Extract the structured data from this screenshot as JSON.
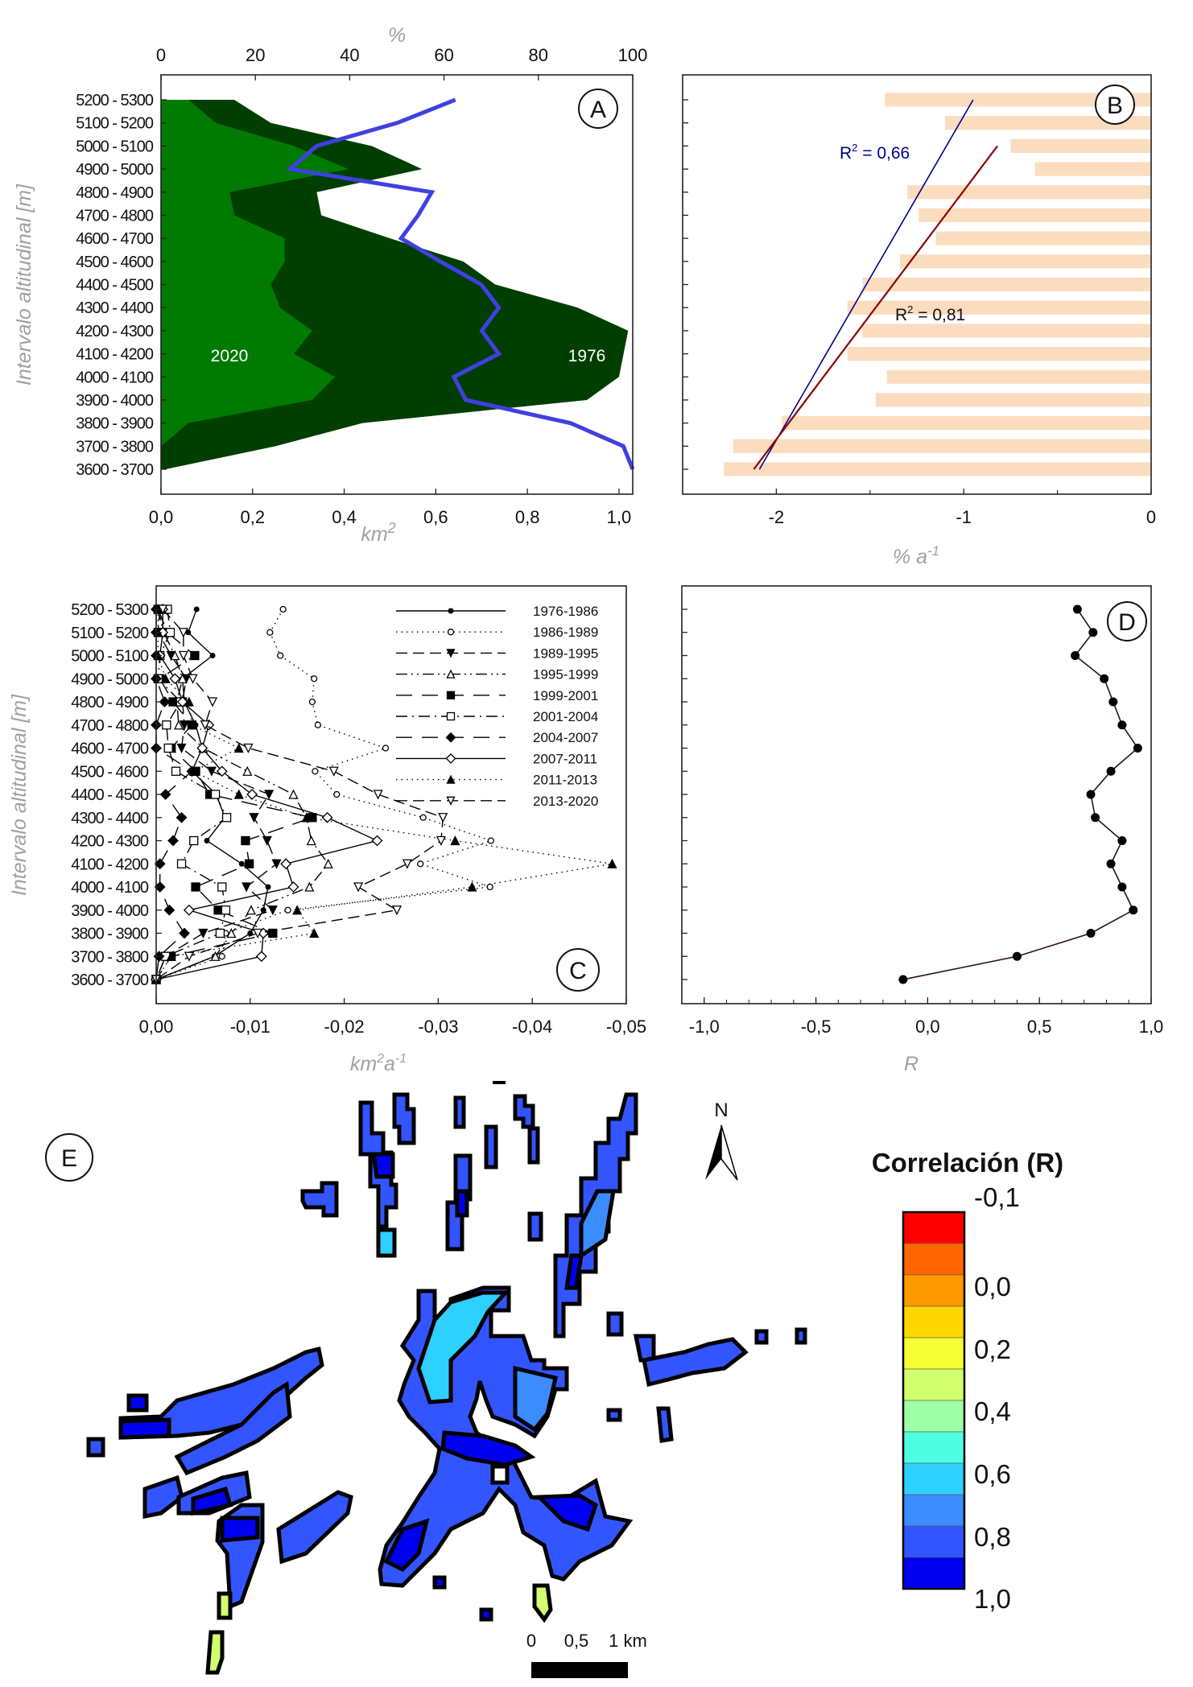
{
  "figure": {
    "row_labels": [
      "5200 - 5300",
      "5100 - 5200",
      "5000 - 5100",
      "4900 - 5000",
      "4800 - 4900",
      "4700 - 4800",
      "4600 - 4700",
      "4500 - 4600",
      "4400 - 4500",
      "4300 - 4400",
      "4200 - 4300",
      "4100 - 4200",
      "4000 - 4100",
      "3900 - 4000",
      "3800 - 3900",
      "3700 - 3800",
      "3600 - 3700"
    ]
  },
  "chart_data": [
    {
      "id": "A",
      "type": "area",
      "panel_label": "A",
      "ylabel": "Intervalo altitudinal [m]",
      "xlabel": "km²",
      "xlabel_base": "km",
      "xlabel_sup": "2",
      "x2label": "%",
      "xlim": [
        0,
        1.03
      ],
      "x2lim": [
        0,
        100
      ],
      "xticks": [
        "0,0",
        "0,2",
        "0,4",
        "0,6",
        "0,8",
        "1,0"
      ],
      "xtick_values": [
        0,
        0.2,
        0.4,
        0.6,
        0.8,
        1.0
      ],
      "x2ticks": [
        "0",
        "20",
        "40",
        "60",
        "80",
        "100"
      ],
      "x2tick_values": [
        0,
        20,
        40,
        60,
        80,
        100
      ],
      "categories": [
        "5200-5300",
        "5100-5200",
        "5000-5100",
        "4900-5000",
        "4800-4900",
        "4700-4800",
        "4600-4700",
        "4500-4600",
        "4400-4500",
        "4300-4400",
        "4200-4300",
        "4100-4200",
        "4000-4100",
        "3900-4000",
        "3800-3900",
        "3700-3800",
        "3600-3700"
      ],
      "series": [
        {
          "name": "1976",
          "axis": "km2",
          "color": "#003f00",
          "values": [
            0.16,
            0.24,
            0.46,
            0.57,
            0.34,
            0.35,
            0.5,
            0.66,
            0.73,
            0.91,
            1.02,
            1.01,
            1.0,
            0.93,
            0.44,
            0.25,
            0.01
          ]
        },
        {
          "name": "2020",
          "axis": "km2",
          "color": "#007a00",
          "values": [
            0.06,
            0.12,
            0.29,
            0.41,
            0.15,
            0.16,
            0.27,
            0.27,
            0.24,
            0.26,
            0.33,
            0.29,
            0.38,
            0.33,
            0.06,
            0.0,
            0.0
          ]
        },
        {
          "name": "% loss",
          "axis": "percent",
          "color": "#4040e0",
          "values": [
            62.4,
            50.1,
            33.0,
            27.4,
            57.4,
            54.5,
            50.9,
            59.2,
            67.9,
            71.6,
            68.0,
            71.6,
            62.1,
            64.6,
            86.8,
            98.0,
            100.0
          ]
        }
      ],
      "annotations": [
        "2020",
        "1976"
      ]
    },
    {
      "id": "B",
      "type": "bar",
      "panel_label": "B",
      "xlabel": "% a⁻¹",
      "xlabel_base": "% a",
      "xlabel_sup": "-1",
      "xlim": [
        -2.5,
        0
      ],
      "xticks": [
        "-2",
        "-1",
        "0"
      ],
      "xtick_values": [
        -2,
        -1,
        0
      ],
      "categories": [
        "5200-5300",
        "5100-5200",
        "5000-5100",
        "4900-5000",
        "4800-4900",
        "4700-4800",
        "4600-4700",
        "4500-4600",
        "4400-4500",
        "4300-4400",
        "4200-4300",
        "4100-4200",
        "4000-4100",
        "3900-4000",
        "3800-3900",
        "3700-3800",
        "3600-3700"
      ],
      "values": [
        -1.42,
        -1.1,
        -0.75,
        -0.62,
        -1.3,
        -1.24,
        -1.15,
        -1.34,
        -1.54,
        -1.62,
        -1.54,
        -1.62,
        -1.41,
        -1.47,
        -1.97,
        -2.23,
        -2.28
      ],
      "bar_color": "#fcdcbf",
      "trendlines": [
        {
          "label_base": "R",
          "label_sup": "2",
          "label_value": " = 0,66",
          "r2": 0.66,
          "color": "#00008b",
          "from": {
            "x": -2.09,
            "category": "3600-3700"
          },
          "to": {
            "x": -0.95,
            "category": "5200-5300"
          }
        },
        {
          "label_base": "R",
          "label_sup": "2",
          "label_value": " = 0,81",
          "r2": 0.81,
          "color": "#8b0000",
          "from": {
            "x": -2.12,
            "category": "3600-3700"
          },
          "to": {
            "x": -0.82,
            "category": "5000-5100"
          }
        }
      ]
    },
    {
      "id": "C",
      "type": "line",
      "panel_label": "C",
      "ylabel": "Intervalo altitudinal [m]",
      "xlabel": "km²a⁻¹",
      "xlabel_parts": [
        "km",
        "2",
        "a",
        "-1"
      ],
      "xlim": [
        0,
        -0.05
      ],
      "xticks": [
        "0,00",
        "-0,01",
        "-0,02",
        "-0,03",
        "-0,04",
        "-0,05"
      ],
      "xtick_values": [
        0,
        -0.01,
        -0.02,
        -0.03,
        -0.04,
        -0.05
      ],
      "categories": [
        "5200-5300",
        "5100-5200",
        "5000-5100",
        "4900-5000",
        "4800-4900",
        "4700-4800",
        "4600-4700",
        "4500-4600",
        "4400-4500",
        "4300-4400",
        "4200-4300",
        "4100-4200",
        "4000-4100",
        "3900-4000",
        "3800-3900",
        "3700-3800",
        "3600-3700"
      ],
      "legend_position": "top-right",
      "series": [
        {
          "name": "1976-1986",
          "marker": "dot",
          "dash": "solid",
          "values": [
            -0.0043,
            -0.0034,
            -0.006,
            -0.0028,
            -0.003,
            -0.0042,
            -0.0049,
            -0.0038,
            -0.0064,
            -0.0073,
            -0.0054,
            -0.0091,
            -0.0119,
            -0.0114,
            -0.01,
            -0.0062,
            0
          ]
        },
        {
          "name": "1986-1989",
          "marker": "open-circle",
          "dash": "dotted",
          "values": [
            -0.0135,
            -0.0121,
            -0.0132,
            -0.0168,
            -0.0166,
            -0.0172,
            -0.0244,
            -0.0169,
            -0.0192,
            -0.0284,
            -0.0356,
            -0.0281,
            -0.0355,
            -0.014,
            -0.0074,
            -0.007,
            0
          ]
        },
        {
          "name": "1989-1995",
          "marker": "filled-down-triangle",
          "dash": "dashed",
          "values": [
            -0.0004,
            -0.0002,
            -0.0016,
            -0.0032,
            -0.0028,
            -0.003,
            -0.0027,
            -0.0059,
            -0.012,
            -0.0104,
            -0.0118,
            -0.0128,
            -0.0096,
            -0.0124,
            -0.005,
            -0.001,
            0
          ]
        },
        {
          "name": "1995-1999",
          "marker": "open-up-triangle",
          "dash": "dash-dot-dot",
          "values": [
            -0.0002,
            -0.0008,
            -0.002,
            -0.0028,
            -0.0022,
            -0.0024,
            -0.005,
            -0.0097,
            -0.0146,
            -0.016,
            -0.0165,
            -0.0183,
            -0.0163,
            -0.0101,
            -0.008,
            -0.0063,
            0
          ]
        },
        {
          "name": "1999-2001",
          "marker": "filled-square",
          "dash": "long-dash",
          "values": [
            -0.0002,
            -0.0012,
            -0.0041,
            -0.0004,
            -0.0018,
            -0.0038,
            -0.0016,
            -0.0042,
            -0.0057,
            -0.0166,
            -0.0095,
            -0.0099,
            -0.0042,
            -0.0066,
            -0.0124,
            -0.0016,
            0
          ]
        },
        {
          "name": "2001-2004",
          "marker": "open-square",
          "dash": "dash-dot",
          "values": [
            -0.0012,
            -0.0015,
            -0.0004,
            -0.0002,
            -0.0026,
            -0.0011,
            -0.0013,
            -0.0021,
            -0.0063,
            -0.0075,
            -0.004,
            -0.0027,
            -0.007,
            -0.0074,
            -0.0068,
            -0.001,
            0
          ]
        },
        {
          "name": "2004-2007",
          "marker": "filled-diamond",
          "dash": "long-dash",
          "values": [
            0,
            0,
            0,
            0,
            -0.0009,
            0,
            0,
            -0.0038,
            -0.001,
            -0.0027,
            -0.0018,
            -0.0004,
            -0.0004,
            -0.0014,
            -0.003,
            -0.0003,
            0
          ]
        },
        {
          "name": "2007-2011",
          "marker": "open-diamond",
          "dash": "solid",
          "values": [
            -0.0007,
            -0.0007,
            -0.0004,
            -0.002,
            -0.0028,
            -0.0056,
            -0.0049,
            -0.007,
            -0.0102,
            -0.0182,
            -0.0235,
            -0.0138,
            -0.0146,
            -0.0035,
            -0.0114,
            -0.0112,
            0
          ]
        },
        {
          "name": "2011-2013",
          "marker": "filled-up-triangle",
          "dash": "dotted",
          "values": [
            -0.0002,
            -0.0002,
            -0.0002,
            -0.001,
            -0.0035,
            -0.0038,
            -0.0088,
            -0.004,
            -0.0088,
            -0.016,
            -0.0318,
            -0.0485,
            -0.0336,
            -0.015,
            -0.0168,
            -0.0016,
            0
          ]
        },
        {
          "name": "2013-2020",
          "marker": "open-down-triangle",
          "dash": "dashed",
          "values": [
            -0.0007,
            -0.0029,
            -0.0029,
            -0.0039,
            -0.006,
            -0.0052,
            -0.0098,
            -0.0189,
            -0.0236,
            -0.0305,
            -0.0303,
            -0.0267,
            -0.0215,
            -0.0256,
            -0.0108,
            -0.0035,
            0
          ]
        }
      ]
    },
    {
      "id": "D",
      "type": "line",
      "panel_label": "D",
      "xlabel": "R",
      "xlim": [
        -1.1,
        1.0
      ],
      "xticks": [
        "-1,0",
        "-0,5",
        "0,0",
        "0,5",
        "1,0"
      ],
      "xtick_values": [
        -1.0,
        -0.5,
        0.0,
        0.5,
        1.0
      ],
      "categories": [
        "5200-5300",
        "5100-5200",
        "5000-5100",
        "4900-5000",
        "4800-4900",
        "4700-4800",
        "4600-4700",
        "4500-4600",
        "4400-4500",
        "4300-4400",
        "4200-4300",
        "4100-4200",
        "4000-4100",
        "3900-4000",
        "3800-3900",
        "3700-3800",
        "3600-3700"
      ],
      "series": [
        {
          "name": "R",
          "color": "#2a0f2a",
          "values": [
            0.67,
            0.74,
            0.66,
            0.79,
            0.83,
            0.87,
            0.94,
            0.82,
            0.73,
            0.75,
            0.87,
            0.82,
            0.87,
            0.92,
            0.73,
            0.4,
            -0.11
          ]
        }
      ]
    }
  ],
  "map": {
    "panel_label": "E",
    "north_label": "N",
    "scale_bar": {
      "labels": [
        "0",
        "0,5",
        "1 km"
      ]
    },
    "legend": {
      "title": "Correlación (R)",
      "labels": [
        "-0,1",
        "0,0",
        "0,2",
        "0,4",
        "0,6",
        "0,8",
        "1,0"
      ],
      "colors": [
        "#ff0000",
        "#ff6600",
        "#ff9900",
        "#ffd700",
        "#f5ff33",
        "#d2ff6e",
        "#9effa6",
        "#4dffe0",
        "#2ed0ff",
        "#3a8cff",
        "#3355ff",
        "#0000f0"
      ]
    },
    "fill_colors": {
      "r_1_0": "#0000f0",
      "r_0_9": "#3355ff",
      "r_0_8": "#3a8cff",
      "r_0_7": "#2ed0ff",
      "r_0_4": "#d2ff6e"
    }
  }
}
